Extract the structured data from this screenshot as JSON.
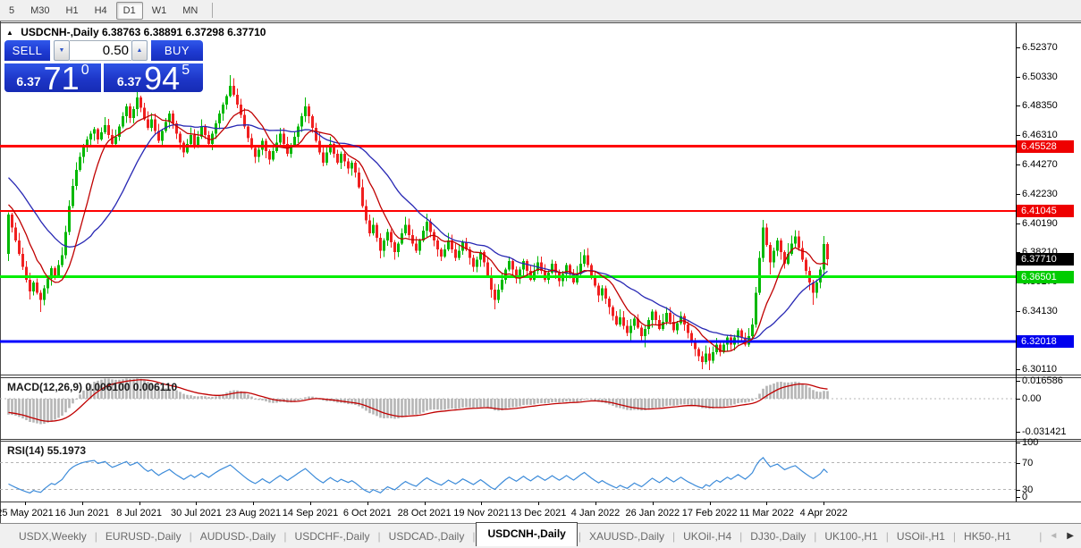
{
  "toolbar": {
    "timeframes": [
      {
        "label": "5"
      },
      {
        "label": "M30"
      },
      {
        "label": "H1"
      },
      {
        "label": "H4"
      },
      {
        "label": "D1",
        "active": true
      },
      {
        "label": "W1"
      },
      {
        "label": "MN"
      }
    ]
  },
  "chart": {
    "title": {
      "collapse_icon": "▲",
      "symbol": "USDCNH-,Daily",
      "ohlc": "6.38763 6.38891 6.37298 6.37710"
    },
    "trade_panel": {
      "sell_label": "SELL",
      "buy_label": "BUY",
      "volume": "0.50",
      "down_icon": "▼",
      "up_icon": "▲",
      "sell_price": {
        "prefix": "6.37",
        "big": "71",
        "sup": "0"
      },
      "buy_price": {
        "prefix": "6.37",
        "big": "94",
        "sup": "5"
      },
      "panel_color": "#1e3ad2"
    },
    "price_axis": {
      "ticks": [
        "6.52370",
        "6.50330",
        "6.48350",
        "6.46310",
        "6.44270",
        "6.42230",
        "6.40190",
        "6.38210",
        "6.36170",
        "6.34130",
        "6.30110"
      ],
      "badges": [
        {
          "label": "6.45528",
          "bg": "#ee0000"
        },
        {
          "label": "6.41045",
          "bg": "#ee0000"
        },
        {
          "label": "6.37710",
          "bg": "#000000"
        },
        {
          "label": "6.36501",
          "bg": "#00cc00"
        },
        {
          "label": "6.32018",
          "bg": "#0000ee"
        }
      ]
    },
    "macd": {
      "name": "MACD(12,26,9)",
      "values": "0.006100 0.006110",
      "axis": [
        "0.016586",
        "0.00",
        "-0.031421"
      ]
    },
    "rsi": {
      "name": "RSI(14)",
      "value": "55.1973",
      "axis": [
        "100",
        "70",
        "30",
        "0"
      ]
    }
  },
  "tabs": {
    "items": [
      {
        "label": "USDX,Weekly"
      },
      {
        "label": "EURUSD-,Daily"
      },
      {
        "label": "AUDUSD-,Daily"
      },
      {
        "label": "USDCHF-,Daily"
      },
      {
        "label": "USDCAD-,Daily"
      },
      {
        "label": "USDCNH-,Daily",
        "active": true
      },
      {
        "label": "XAUUSD-,Daily"
      },
      {
        "label": "UKOil-,H4"
      },
      {
        "label": "DJ30-,Daily"
      },
      {
        "label": "UK100-,H1"
      },
      {
        "label": "USOil-,H1"
      },
      {
        "label": "HK50-,H1"
      }
    ],
    "scroll": {
      "left": "◄",
      "right": "▶"
    }
  },
  "chart_data": {
    "type": "candlestick",
    "symbol": "USDCNH",
    "timeframe": "Daily",
    "last_candle": {
      "open": 6.38763,
      "high": 6.38891,
      "low": 6.37298,
      "close": 6.3771
    },
    "date_labels": [
      "25 May 2021",
      "16 Jun 2021",
      "8 Jul 2021",
      "30 Jul 2021",
      "23 Aug 2021",
      "14 Sep 2021",
      "6 Oct 2021",
      "28 Oct 2021",
      "19 Nov 2021",
      "13 Dec 2021",
      "4 Jan 2022",
      "26 Jan 2022",
      "17 Feb 2022",
      "11 Mar 2022",
      "4 Apr 2022"
    ],
    "hlines": [
      {
        "price": 6.45528,
        "color": "#ff0000",
        "width": 3
      },
      {
        "price": 6.41045,
        "color": "#ff0000",
        "width": 2
      },
      {
        "price": 6.36501,
        "color": "#00ee00",
        "width": 3
      },
      {
        "price": 6.32018,
        "color": "#0000ff",
        "width": 3
      }
    ],
    "prehistory_closes": [
      6.478,
      6.47,
      6.4735,
      6.4655,
      6.469,
      6.461,
      6.4645,
      6.4565,
      6.46,
      6.452,
      6.4555,
      6.4475,
      6.451,
      6.443,
      6.4465,
      6.4385,
      6.442,
      6.434,
      6.4375,
      6.4295,
      6.433,
      6.425,
      6.4285,
      6.4205,
      6.424,
      6.416,
      6.4195,
      6.4115,
      6.415,
      6.381
    ],
    "closes": [
      6.408,
      6.399,
      6.39,
      6.381,
      6.372,
      6.363,
      6.355,
      6.361,
      6.354,
      6.349,
      6.357,
      6.364,
      6.371,
      6.366,
      6.373,
      6.38,
      6.396,
      6.414,
      6.428,
      6.439,
      6.448,
      6.455,
      6.46,
      6.464,
      6.467,
      6.46,
      6.465,
      6.47,
      6.463,
      6.457,
      6.462,
      6.469,
      6.476,
      6.483,
      6.475,
      6.481,
      6.489,
      6.482,
      6.474,
      6.468,
      6.474,
      6.466,
      6.459,
      6.466,
      6.472,
      6.478,
      6.471,
      6.464,
      6.458,
      6.451,
      6.457,
      6.463,
      6.456,
      6.462,
      6.469,
      6.463,
      6.457,
      6.464,
      6.471,
      6.478,
      6.484,
      6.49,
      6.497,
      6.491,
      6.484,
      6.477,
      6.469,
      6.461,
      6.454,
      6.448,
      6.453,
      6.459,
      6.452,
      6.446,
      6.452,
      6.458,
      6.464,
      6.457,
      6.45,
      6.456,
      6.462,
      6.469,
      6.476,
      6.483,
      6.476,
      6.468,
      6.459,
      6.451,
      6.444,
      6.451,
      6.457,
      6.45,
      6.444,
      6.45,
      6.445,
      6.44,
      6.444,
      6.437,
      6.427,
      6.414,
      6.404,
      6.395,
      6.401,
      6.392,
      6.383,
      6.39,
      6.396,
      6.389,
      6.382,
      6.388,
      6.395,
      6.401,
      6.394,
      6.388,
      6.383,
      6.39,
      6.397,
      6.403,
      6.396,
      6.39,
      6.384,
      6.379,
      6.384,
      6.39,
      6.384,
      6.378,
      6.383,
      6.389,
      6.384,
      6.378,
      6.372,
      6.377,
      6.382,
      6.375,
      6.366,
      6.356,
      6.349,
      6.356,
      6.363,
      6.37,
      6.376,
      6.37,
      6.364,
      6.37,
      6.376,
      6.369,
      6.363,
      6.369,
      6.375,
      6.369,
      6.363,
      6.368,
      6.374,
      6.368,
      6.362,
      6.367,
      6.373,
      6.367,
      6.361,
      6.367,
      6.374,
      6.38,
      6.373,
      6.366,
      6.359,
      6.352,
      6.357,
      6.35,
      6.344,
      6.338,
      6.332,
      6.337,
      6.331,
      6.326,
      6.331,
      6.336,
      6.33,
      6.324,
      6.329,
      6.335,
      6.341,
      6.335,
      6.329,
      6.334,
      6.34,
      6.334,
      6.328,
      6.333,
      6.338,
      6.332,
      6.326,
      6.321,
      6.315,
      6.31,
      6.306,
      6.312,
      6.307,
      6.313,
      6.318,
      6.313,
      6.318,
      6.323,
      6.318,
      6.323,
      6.328,
      6.323,
      6.318,
      6.324,
      6.332,
      6.354,
      6.378,
      6.399,
      6.387,
      6.375,
      6.383,
      6.39,
      6.382,
      6.374,
      6.381,
      6.388,
      6.393,
      6.385,
      6.377,
      6.369,
      6.361,
      6.354,
      6.361,
      6.37,
      6.3876,
      6.3771
    ],
    "wick_high_pattern": [
      0.0016,
      0.004,
      0.0022,
      0.0055,
      0.003,
      0.0012,
      0.0048,
      0.002,
      0.0042,
      0.0018,
      0.0034,
      0.0014
    ],
    "wick_low_pattern": [
      0.0014,
      0.0036,
      0.002,
      0.005,
      0.0028,
      0.001,
      0.0044,
      0.0024,
      0.0038,
      0.0016,
      0.0032,
      0.0012
    ],
    "long_wick_high_indices": [
      19,
      36,
      62,
      83,
      117,
      160,
      211,
      218,
      228
    ],
    "long_wick_low_indices": [
      6,
      9,
      104,
      135,
      136,
      174,
      178,
      194,
      196,
      213,
      224,
      225
    ],
    "ma_fast_period": 10,
    "ma_slow_period": 25,
    "macd_params": [
      12,
      26,
      9
    ],
    "rsi_period": 14,
    "rsi_levels": [
      70,
      30
    ],
    "colors": {
      "up": "#00b800",
      "down": "#f02020",
      "ma_fast": "#c00000",
      "ma_slow": "#2828b4",
      "macd_hist": "#b5b5b5",
      "macd_signal": "#c00000",
      "rsi_line": "#3c8bd9",
      "level_dash": "#b4b4b4"
    }
  }
}
